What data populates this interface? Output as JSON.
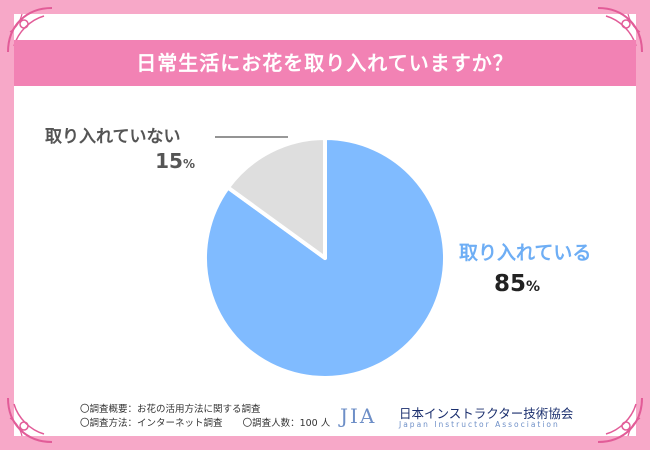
{
  "title": "日常生活にお花を取り入れていますか？",
  "chart_data": {
    "type": "pie",
    "slices": [
      {
        "label": "取り入れている",
        "value": 85,
        "percent_label": "85",
        "color": "#80bbff"
      },
      {
        "label": "取り入れていない",
        "value": 15,
        "percent_label": "15",
        "color": "#dedede"
      }
    ],
    "unit": "%"
  },
  "footer": {
    "line1": "〇調査概要：お花の活用方法に関する調査",
    "line2a": "〇調査方法：インターネット調査",
    "line2b": "〇調査人数：100 人"
  },
  "logo": {
    "mark": "JIA",
    "name": "日本インストラクター技術協会",
    "english": "Japan Instructor Association"
  },
  "colors": {
    "frame": "#f7a8c8",
    "title_bar": "#f282b4",
    "accent_label": "#6eaef5",
    "dark_label": "#555555"
  }
}
